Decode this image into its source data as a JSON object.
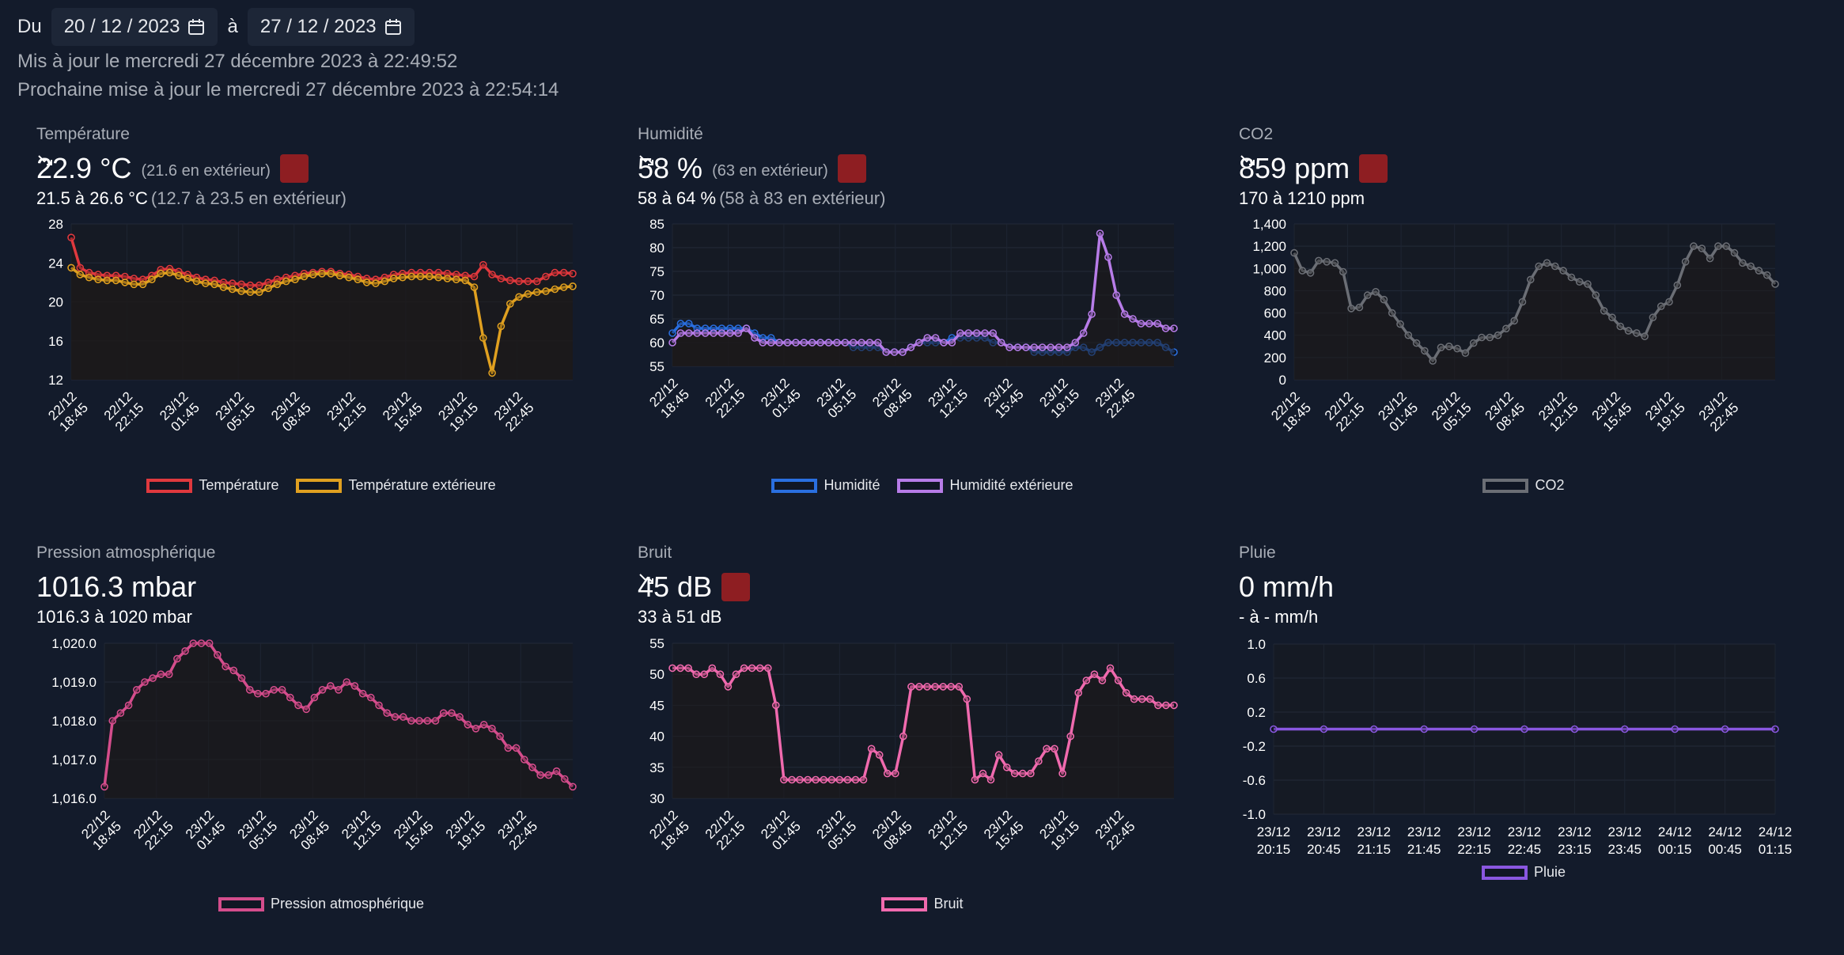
{
  "header": {
    "from_label": "Du",
    "from_date": "20 / 12 / 2023",
    "to_label": "à",
    "to_date": "27 / 12 / 2023",
    "updated": "Mis à jour le mercredi 27 décembre 2023 à 22:49:52",
    "next_update": "Prochaine mise à jour le mercredi 27 décembre 2023 à 22:54:14"
  },
  "colors": {
    "background": "#131b2b",
    "trend_badge": "#8e1e22"
  },
  "panels": [
    {
      "title": "Température",
      "value": "22.9 °C",
      "value_ext": "(21.6 en extérieur)",
      "trend": "down",
      "range": "21.5 à 26.6 °C",
      "range_ext": "(12.7 à 23.5 en extérieur)"
    },
    {
      "title": "Humidité",
      "value": "58 %",
      "value_ext": "(63 en extérieur)",
      "trend": "down",
      "range": "58 à 64 %",
      "range_ext": "(58 à 83 en extérieur)"
    },
    {
      "title": "CO2",
      "value": "859 ppm",
      "value_ext": "",
      "trend": "down",
      "range": "170 à 1210 ppm",
      "range_ext": ""
    },
    {
      "title": "Pression atmosphérique",
      "value": "1016.3 mbar",
      "value_ext": "",
      "trend": "",
      "range": "1016.3 à 1020 mbar",
      "range_ext": ""
    },
    {
      "title": "Bruit",
      "value": "45 dB",
      "value_ext": "",
      "trend": "down",
      "range": "33 à 51 dB",
      "range_ext": ""
    },
    {
      "title": "Pluie",
      "value": "0 mm/h",
      "value_ext": "",
      "trend": "",
      "range": "- à - mm/h",
      "range_ext": ""
    }
  ],
  "chart_data": [
    {
      "type": "line",
      "ylim": [
        12,
        28
      ],
      "yticks": [
        "28",
        "24",
        "20",
        "16",
        "12"
      ],
      "ytick_values": [
        28,
        24,
        20,
        16,
        12
      ],
      "xticks": [
        "22/12 18:45",
        "22/12 22:15",
        "23/12 01:45",
        "23/12 05:15",
        "23/12 08:45",
        "23/12 12:15",
        "23/12 15:45",
        "23/12 19:15",
        "23/12 22:45"
      ],
      "rotate_ticks": true,
      "fill": true,
      "series": [
        {
          "name": "Température",
          "color": "#e0393e",
          "values": [
            26.6,
            23.5,
            23,
            22.8,
            22.7,
            22.7,
            22.6,
            22.4,
            22.3,
            22.7,
            23.3,
            23.4,
            23.1,
            22.8,
            22.5,
            22.3,
            22.2,
            22,
            21.9,
            21.8,
            21.7,
            21.7,
            22,
            22.3,
            22.5,
            22.7,
            22.9,
            23,
            23.1,
            23.1,
            22.9,
            22.8,
            22.6,
            22.4,
            22.3,
            22.5,
            22.8,
            22.9,
            23,
            23,
            23,
            23,
            22.9,
            22.8,
            22.7,
            22.6,
            23.8,
            22.8,
            22.4,
            22.2,
            22.1,
            22.1,
            22.1,
            22.6,
            23,
            23,
            22.9
          ]
        },
        {
          "name": "Température extérieure",
          "color": "#e0a020",
          "values": [
            23.5,
            22.8,
            22.5,
            22.3,
            22.2,
            22.2,
            22,
            21.8,
            21.8,
            22.3,
            22.9,
            23,
            22.7,
            22.4,
            22.1,
            21.9,
            21.8,
            21.5,
            21.3,
            21.1,
            21,
            21,
            21.4,
            21.8,
            22.1,
            22.3,
            22.6,
            22.8,
            22.9,
            22.9,
            22.7,
            22.5,
            22.3,
            22,
            21.9,
            22.1,
            22.4,
            22.5,
            22.6,
            22.6,
            22.6,
            22.5,
            22.4,
            22.3,
            22.2,
            21.5,
            16.3,
            12.7,
            17.5,
            19.8,
            20.5,
            20.8,
            21,
            21.1,
            21.3,
            21.5,
            21.6
          ]
        }
      ]
    },
    {
      "type": "line",
      "ylim": [
        55,
        85
      ],
      "yticks": [
        "85",
        "80",
        "75",
        "70",
        "65",
        "60",
        "55"
      ],
      "ytick_values": [
        85,
        80,
        75,
        70,
        65,
        60,
        55
      ],
      "xticks": [
        "22/12 18:45",
        "22/12 22:15",
        "23/12 01:45",
        "23/12 05:15",
        "23/12 08:45",
        "23/12 12:15",
        "23/12 15:45",
        "23/12 19:15",
        "23/12 22:45"
      ],
      "rotate_ticks": true,
      "fill": true,
      "series": [
        {
          "name": "Humidité",
          "color": "#2a6fe0",
          "values": [
            62,
            64,
            64,
            63,
            63,
            63,
            63,
            63,
            63,
            63,
            62,
            61,
            61,
            60,
            60,
            60,
            60,
            60,
            60,
            60,
            60,
            60,
            59,
            59,
            59,
            59,
            58,
            58,
            58,
            59,
            60,
            60,
            60,
            60,
            61,
            61,
            61,
            61,
            61,
            60,
            60,
            59,
            59,
            59,
            58,
            58,
            58,
            58,
            58,
            59,
            59,
            58,
            59,
            60,
            60,
            60,
            60,
            60,
            60,
            60,
            59,
            58
          ]
        },
        {
          "name": "Humidité extérieure",
          "color": "#b77ce8",
          "values": [
            60,
            62,
            62,
            62,
            62,
            62,
            62,
            62,
            62,
            63,
            61,
            60,
            60,
            60,
            60,
            60,
            60,
            60,
            60,
            60,
            60,
            60,
            60,
            60,
            60,
            60,
            58,
            58,
            58,
            59,
            60,
            61,
            61,
            60,
            60,
            62,
            62,
            62,
            62,
            62,
            60,
            59,
            59,
            59,
            59,
            59,
            59,
            59,
            59,
            60,
            62,
            66,
            83,
            78,
            70,
            66,
            65,
            64,
            64,
            64,
            63,
            63
          ]
        }
      ]
    },
    {
      "type": "line",
      "ylim": [
        0,
        1400
      ],
      "yticks": [
        "1,400",
        "1,200",
        "1,000",
        "800",
        "600",
        "400",
        "200",
        "0"
      ],
      "ytick_values": [
        1400,
        1200,
        1000,
        800,
        600,
        400,
        200,
        0
      ],
      "xticks": [
        "22/12 18:45",
        "22/12 22:15",
        "23/12 01:45",
        "23/12 05:15",
        "23/12 08:45",
        "23/12 12:15",
        "23/12 15:45",
        "23/12 19:15",
        "23/12 22:45"
      ],
      "rotate_ticks": true,
      "fill": true,
      "series": [
        {
          "name": "CO2",
          "color": "#6b6e75",
          "values": [
            1140,
            980,
            960,
            1070,
            1060,
            1050,
            970,
            640,
            650,
            760,
            790,
            720,
            600,
            500,
            400,
            330,
            260,
            170,
            290,
            300,
            280,
            240,
            330,
            380,
            380,
            400,
            460,
            530,
            700,
            900,
            1020,
            1050,
            1020,
            980,
            920,
            880,
            860,
            760,
            620,
            560,
            480,
            440,
            420,
            390,
            560,
            660,
            700,
            850,
            1060,
            1200,
            1180,
            1090,
            1200,
            1200,
            1140,
            1050,
            1020,
            980,
            940,
            860
          ]
        }
      ]
    },
    {
      "type": "line",
      "ylim": [
        1016,
        1020
      ],
      "yticks": [
        "1,020.0",
        "1,019.0",
        "1,018.0",
        "1,017.0",
        "1,016.0"
      ],
      "ytick_values": [
        1020,
        1019,
        1018,
        1017,
        1016
      ],
      "xticks": [
        "22/12 18:45",
        "22/12 22:15",
        "23/12 01:45",
        "23/12 05:15",
        "23/12 08:45",
        "23/12 12:15",
        "23/12 15:45",
        "23/12 19:15",
        "23/12 22:45"
      ],
      "rotate_ticks": true,
      "fill": true,
      "series": [
        {
          "name": "Pression atmosphérique",
          "color": "#d44d8c",
          "values": [
            1016.3,
            1018,
            1018.2,
            1018.4,
            1018.8,
            1019,
            1019.1,
            1019.2,
            1019.2,
            1019.6,
            1019.8,
            1020,
            1020,
            1020,
            1019.7,
            1019.4,
            1019.3,
            1019.1,
            1018.8,
            1018.7,
            1018.7,
            1018.8,
            1018.8,
            1018.6,
            1018.4,
            1018.3,
            1018.6,
            1018.8,
            1018.9,
            1018.8,
            1019,
            1018.9,
            1018.7,
            1018.6,
            1018.4,
            1018.2,
            1018.1,
            1018.1,
            1018,
            1018,
            1018,
            1018,
            1018.2,
            1018.2,
            1018.1,
            1017.9,
            1017.8,
            1017.9,
            1017.8,
            1017.6,
            1017.3,
            1017.3,
            1017,
            1016.8,
            1016.6,
            1016.6,
            1016.7,
            1016.5,
            1016.3
          ]
        }
      ]
    },
    {
      "type": "line",
      "ylim": [
        30,
        55
      ],
      "yticks": [
        "55",
        "50",
        "45",
        "40",
        "35",
        "30"
      ],
      "ytick_values": [
        55,
        50,
        45,
        40,
        35,
        30
      ],
      "xticks": [
        "22/12 18:45",
        "22/12 22:15",
        "23/12 01:45",
        "23/12 05:15",
        "23/12 08:45",
        "23/12 12:15",
        "23/12 15:45",
        "23/12 19:15",
        "23/12 22:45"
      ],
      "rotate_ticks": true,
      "fill": true,
      "series": [
        {
          "name": "Bruit",
          "color": "#f06aae",
          "values": [
            51,
            51,
            51,
            50,
            50,
            51,
            50,
            48,
            50,
            51,
            51,
            51,
            51,
            45,
            33,
            33,
            33,
            33,
            33,
            33,
            33,
            33,
            33,
            33,
            33,
            38,
            37,
            34,
            34,
            40,
            48,
            48,
            48,
            48,
            48,
            48,
            48,
            46,
            33,
            34,
            33,
            37,
            35,
            34,
            34,
            34,
            36,
            38,
            38,
            34,
            40,
            47,
            49,
            50,
            49,
            51,
            49,
            47,
            46,
            46,
            46,
            45,
            45,
            45
          ]
        }
      ]
    },
    {
      "type": "line",
      "ylim": [
        -1.0,
        1.0
      ],
      "yticks": [
        "1.0",
        "0.6",
        "0.2",
        "-0.2",
        "-0.6",
        "-1.0"
      ],
      "ytick_values": [
        1.0,
        0.6,
        0.2,
        -0.2,
        -0.6,
        -1.0
      ],
      "xticks": [
        "23/12 20:15",
        "23/12 20:45",
        "23/12 21:15",
        "23/12 21:45",
        "23/12 22:15",
        "23/12 22:45",
        "23/12 23:15",
        "23/12 23:45",
        "24/12 00:15",
        "24/12 00:45",
        "24/12 01:15"
      ],
      "rotate_ticks": false,
      "fill": false,
      "series": [
        {
          "name": "Pluie",
          "color": "#8a57e0",
          "values": [
            0,
            0,
            0,
            0,
            0,
            0,
            0,
            0,
            0,
            0,
            0
          ]
        }
      ]
    }
  ]
}
